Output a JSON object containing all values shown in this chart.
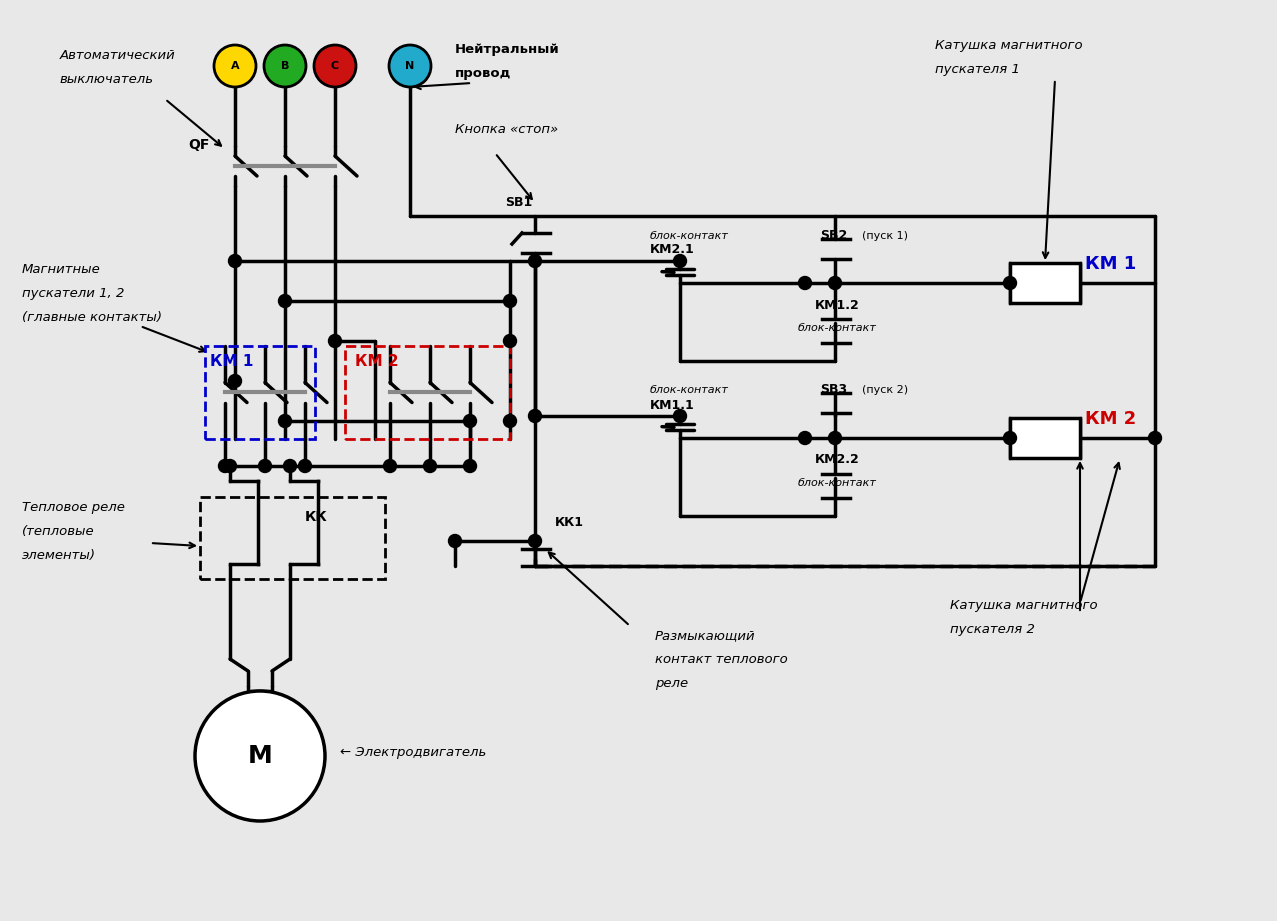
{
  "bg_color": "#e8e8e8",
  "line_color": "#000000",
  "lw": 2.5,
  "phase_colors": [
    "#FFD700",
    "#22AA22",
    "#CC1111",
    "#22AACC"
  ],
  "phase_labels": [
    "A",
    "B",
    "C",
    "N"
  ],
  "km1_color": "#0000CC",
  "km2_color": "#CC0000",
  "gray": "#888888"
}
